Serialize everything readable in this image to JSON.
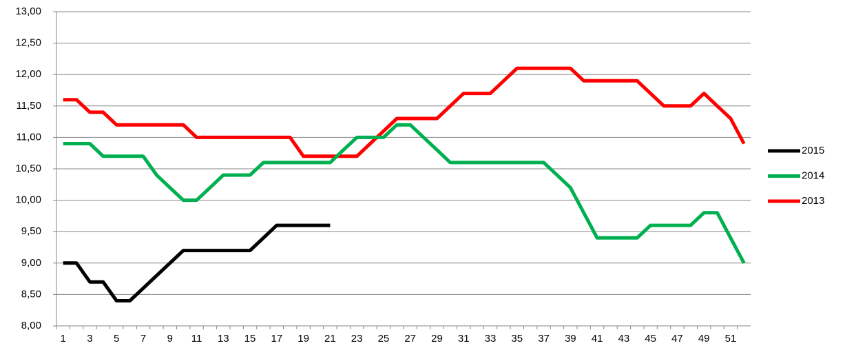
{
  "chart_data": {
    "type": "line",
    "categories": [
      1,
      null,
      3,
      null,
      5,
      null,
      7,
      null,
      9,
      null,
      11,
      null,
      13,
      null,
      15,
      null,
      17,
      null,
      19,
      null,
      21,
      null,
      23,
      null,
      25,
      null,
      27,
      null,
      29,
      null,
      31,
      null,
      33,
      null,
      35,
      null,
      37,
      null,
      39,
      null,
      41,
      null,
      43,
      null,
      45,
      null,
      47,
      null,
      49,
      null,
      51,
      null
    ],
    "series": [
      {
        "name": "2015",
        "color": "#000000",
        "values": [
          9.0,
          9.0,
          8.7,
          8.7,
          8.4,
          8.4,
          8.6,
          8.8,
          9.0,
          9.2,
          9.2,
          9.2,
          9.2,
          9.2,
          9.2,
          9.4,
          9.6,
          9.6,
          9.6,
          9.6,
          9.6,
          null,
          null,
          null,
          null,
          null,
          null,
          null,
          null,
          null,
          null,
          null,
          null,
          null,
          null,
          null,
          null,
          null,
          null,
          null,
          null,
          null,
          null,
          null,
          null,
          null,
          null,
          null,
          null,
          null,
          null,
          null
        ]
      },
      {
        "name": "2014",
        "color": "#00b050",
        "values": [
          10.9,
          10.9,
          10.9,
          10.7,
          10.7,
          10.7,
          10.7,
          10.4,
          10.2,
          10.0,
          10.0,
          10.2,
          10.4,
          10.4,
          10.4,
          10.6,
          10.6,
          10.6,
          10.6,
          10.6,
          10.6,
          10.8,
          11.0,
          11.0,
          11.0,
          11.2,
          11.2,
          11.0,
          10.8,
          10.6,
          10.6,
          10.6,
          10.6,
          10.6,
          10.6,
          10.6,
          10.6,
          10.4,
          10.2,
          9.8,
          9.4,
          9.4,
          9.4,
          9.4,
          9.6,
          9.6,
          9.6,
          9.6,
          9.8,
          9.8,
          9.4,
          9.0
        ]
      },
      {
        "name": "2013",
        "color": "#ff0000",
        "values": [
          11.6,
          11.6,
          11.4,
          11.4,
          11.2,
          11.2,
          11.2,
          11.2,
          11.2,
          11.2,
          11.0,
          11.0,
          11.0,
          11.0,
          11.0,
          11.0,
          11.0,
          11.0,
          10.7,
          10.7,
          10.7,
          10.7,
          10.7,
          10.9,
          11.1,
          11.3,
          11.3,
          11.3,
          11.3,
          11.5,
          11.7,
          11.7,
          11.7,
          11.9,
          12.1,
          12.1,
          12.1,
          12.1,
          12.1,
          11.9,
          11.9,
          11.9,
          11.9,
          11.9,
          11.7,
          11.5,
          11.5,
          11.5,
          11.7,
          11.5,
          11.3,
          10.9
        ]
      }
    ],
    "ylim": [
      8,
      13
    ],
    "yticks": [
      {
        "value": 8,
        "label": "8,00"
      },
      {
        "value": 8.5,
        "label": "8,50"
      },
      {
        "value": 9,
        "label": "9,00"
      },
      {
        "value": 9.5,
        "label": "9,50"
      },
      {
        "value": 10,
        "label": "10,00"
      },
      {
        "value": 10.5,
        "label": "10,50"
      },
      {
        "value": 11,
        "label": "11,00"
      },
      {
        "value": 11.5,
        "label": "11,50"
      },
      {
        "value": 12,
        "label": "12,00"
      },
      {
        "value": 12.5,
        "label": "12,50"
      },
      {
        "value": 13,
        "label": "13,00"
      }
    ],
    "grid": true,
    "legend": "right"
  }
}
